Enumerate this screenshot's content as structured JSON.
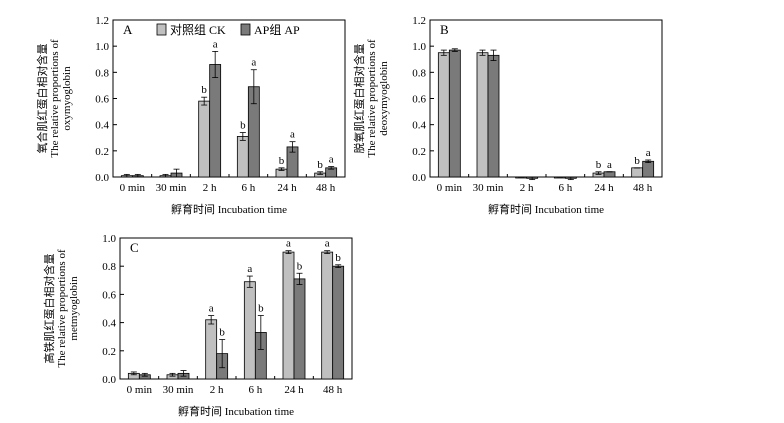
{
  "chart_data": [
    {
      "type": "bar",
      "panel": "A",
      "categories": [
        "0 min",
        "30 min",
        "2 h",
        "6 h",
        "24 h",
        "48 h"
      ],
      "ylim": [
        0,
        1.2
      ],
      "yticks": [
        "0.0",
        "0.2",
        "0.4",
        "0.6",
        "0.8",
        "1.0",
        "1.2"
      ],
      "ylabel_cn": "氧合肌红蛋白相对含量",
      "ylabel_en_1": "The relative proportions of",
      "ylabel_en_2": "oxymyoglobin",
      "xlabel": "孵育时间 Incubation time",
      "legend_position": "top",
      "series": [
        {
          "name": "对照组 CK",
          "color": "#c0c0c0",
          "values": [
            0.01,
            0.01,
            0.58,
            0.31,
            0.06,
            0.03
          ],
          "errors": [
            0.01,
            0.01,
            0.03,
            0.03,
            0.01,
            0.01
          ],
          "sig": [
            "",
            "",
            "b",
            "b",
            "b",
            "b"
          ]
        },
        {
          "name": "AP组 AP",
          "color": "#7a7a7a",
          "values": [
            0.01,
            0.03,
            0.86,
            0.69,
            0.23,
            0.07
          ],
          "errors": [
            0.01,
            0.03,
            0.1,
            0.13,
            0.04,
            0.01
          ],
          "sig": [
            "",
            "",
            "a",
            "a",
            "a",
            "a"
          ]
        }
      ]
    },
    {
      "type": "bar",
      "panel": "B",
      "categories": [
        "0 min",
        "30 min",
        "2 h",
        "6 h",
        "24 h",
        "48 h"
      ],
      "ylim": [
        0,
        1.2
      ],
      "yticks": [
        "0.0",
        "0.2",
        "0.4",
        "0.6",
        "0.8",
        "1.0",
        "1.2"
      ],
      "ylabel_cn": "脱氧肌红蛋白相对含量",
      "ylabel_en_1": "The relative proportions of",
      "ylabel_en_2": "deoxymyoglobin",
      "xlabel": "孵育时间 Incubation time",
      "series": [
        {
          "name": "对照组 CK",
          "color": "#c0c0c0",
          "values": [
            0.95,
            0.95,
            0.0,
            0.0,
            0.03,
            0.07
          ],
          "errors": [
            0.02,
            0.02,
            0.0,
            0.0,
            0.01,
            0.0
          ],
          "sig": [
            "",
            "",
            "",
            "",
            "b",
            "b"
          ]
        },
        {
          "name": "AP组 AP",
          "color": "#7a7a7a",
          "values": [
            0.97,
            0.93,
            -0.01,
            -0.01,
            0.04,
            0.12
          ],
          "errors": [
            0.01,
            0.04,
            0.01,
            0.01,
            0.0,
            0.01
          ],
          "sig": [
            "",
            "",
            "",
            "",
            "a",
            "a"
          ]
        }
      ]
    },
    {
      "type": "bar",
      "panel": "C",
      "categories": [
        "0 min",
        "30 min",
        "2 h",
        "6 h",
        "24 h",
        "48 h"
      ],
      "ylim": [
        0,
        1.0
      ],
      "yticks": [
        "0.0",
        "0.2",
        "0.4",
        "0.6",
        "0.8",
        "1.0"
      ],
      "ylabel_cn": "高铁肌红蛋白相对含量",
      "ylabel_en_1": "The relative proportions of",
      "ylabel_en_2": "metmyoglobin",
      "xlabel": "孵育时间 Incubation time",
      "series": [
        {
          "name": "对照组 CK",
          "color": "#c0c0c0",
          "values": [
            0.04,
            0.03,
            0.42,
            0.69,
            0.9,
            0.9
          ],
          "errors": [
            0.01,
            0.01,
            0.03,
            0.04,
            0.01,
            0.01
          ],
          "sig": [
            "",
            "",
            "a",
            "a",
            "a",
            "a"
          ]
        },
        {
          "name": "AP组 AP",
          "color": "#7a7a7a",
          "values": [
            0.03,
            0.04,
            0.18,
            0.33,
            0.71,
            0.8
          ],
          "errors": [
            0.01,
            0.02,
            0.1,
            0.12,
            0.04,
            0.01
          ],
          "sig": [
            "",
            "",
            "b",
            "b",
            "b",
            "b"
          ]
        }
      ]
    }
  ]
}
